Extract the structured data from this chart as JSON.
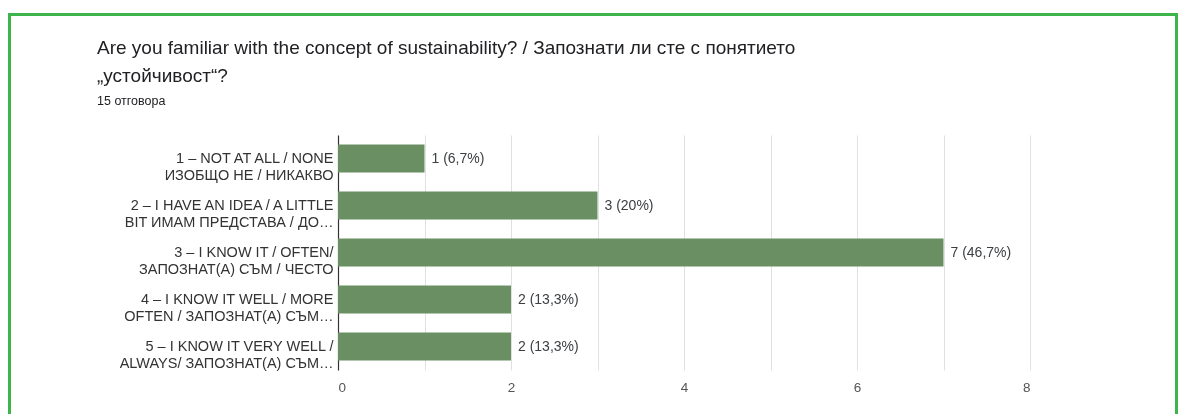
{
  "chart_data": {
    "type": "bar",
    "orientation": "horizontal",
    "title": "Are you familiar with the concept of sustainability? / Запознати ли сте с понятието „устойчивост“?",
    "subtitle": "15 отговора",
    "categories": [
      "1 – NOT AT ALL / NONE\nИЗОБЩО НЕ / НИКАКВО",
      "2 – I HAVE AN IDEA / A LITTLE\nBIT ИМАМ ПРЕДСТАВА / ДО…",
      "3 – I KNOW IT / OFTEN/\nЗАПОЗНАТ(А) СЪМ / ЧЕСТО",
      "4 – I KNOW IT WELL / MORE\nOFTEN / ЗАПОЗНАТ(А) СЪМ…",
      "5 – I KNOW IT VERY WELL /\nALWAYS/ ЗАПОЗНАТ(А) СЪМ…"
    ],
    "values": [
      1,
      3,
      7,
      2,
      2
    ],
    "value_labels": [
      "1 (6,7%)",
      "3 (20%)",
      "7 (46,7%)",
      "2 (13,3%)",
      "2 (13,3%)"
    ],
    "color": "#6a8f63",
    "xlim": [
      0,
      8
    ],
    "xticks": [
      0,
      {
        "value": 1,
        "label": null
      },
      2,
      {
        "value": 3,
        "label": null
      },
      4,
      {
        "value": 5,
        "label": null
      },
      6,
      {
        "value": 7,
        "label": null
      },
      8
    ],
    "grid": "x"
  }
}
